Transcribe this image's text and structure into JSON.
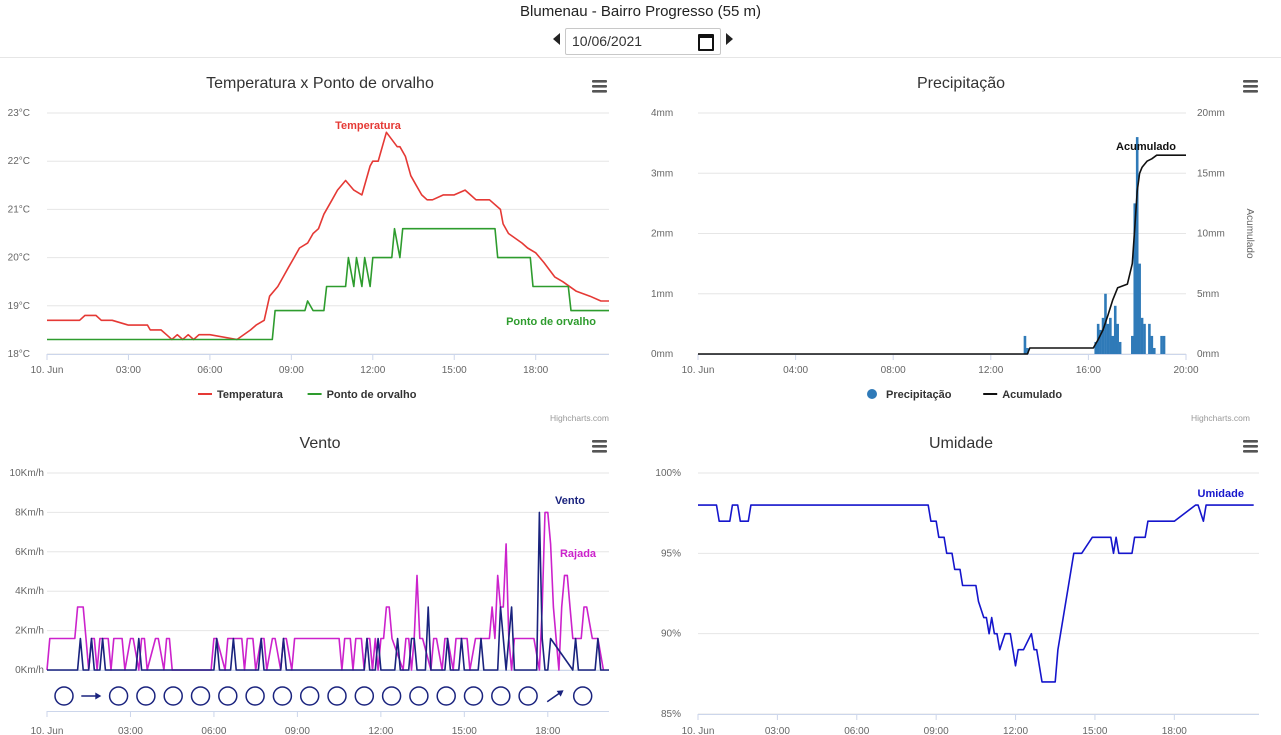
{
  "header": {
    "title": "Blumenau - Bairro Progresso (55 m)",
    "date": "10/06/2021",
    "prev_icon": "caret-left-icon",
    "next_icon": "caret-right-icon",
    "calendar_icon": "calendar-icon"
  },
  "menu_icon": "hamburger-menu-icon",
  "credit": "Highcharts.com",
  "chart_data": [
    {
      "id": "temperature",
      "type": "line",
      "title": "Temperatura x Ponto de orvalho",
      "x_ticks": [
        "10. Jun",
        "03:00",
        "06:00",
        "09:00",
        "12:00",
        "15:00",
        "18:00"
      ],
      "xlim": [
        0,
        20.7
      ],
      "ylim": [
        18,
        23
      ],
      "y_ticks": [
        "18°C",
        "19°C",
        "20°C",
        "21°C",
        "22°C",
        "23°C"
      ],
      "legend": [
        "Temperatura",
        "Ponto de orvalho"
      ],
      "series": [
        {
          "name": "Temperatura",
          "color": "#e53935",
          "label": "Temperatura",
          "x": [
            0,
            1.2,
            1.4,
            1.8,
            2.0,
            2.4,
            3.0,
            3.7,
            3.8,
            4.2,
            4.4,
            4.6,
            4.8,
            5.0,
            5.2,
            5.4,
            5.6,
            6.0,
            7.0,
            7.5,
            7.7,
            8.0,
            8.2,
            8.5,
            8.7,
            8.9,
            9.1,
            9.3,
            9.6,
            9.8,
            10.0,
            10.2,
            10.5,
            10.7,
            11.0,
            11.3,
            11.6,
            11.9,
            12.0,
            12.2,
            12.3,
            12.5,
            12.9,
            13.0,
            13.2,
            13.4,
            13.6,
            13.8,
            14.0,
            14.2,
            14.6,
            14.8,
            15.0,
            15.4,
            15.6,
            15.8,
            16.3,
            16.7,
            16.8,
            17.0,
            17.5,
            17.7,
            18.0,
            18.3,
            18.7,
            19.0,
            19.5,
            20.0,
            20.4,
            20.7
          ],
          "y": [
            18.7,
            18.7,
            18.8,
            18.8,
            18.7,
            18.7,
            18.6,
            18.6,
            18.5,
            18.5,
            18.4,
            18.3,
            18.4,
            18.3,
            18.4,
            18.3,
            18.4,
            18.4,
            18.3,
            18.5,
            18.6,
            18.7,
            19.2,
            19.4,
            19.6,
            19.8,
            20.0,
            20.2,
            20.3,
            20.5,
            20.6,
            20.9,
            21.2,
            21.4,
            21.6,
            21.4,
            21.3,
            21.9,
            22.0,
            22.0,
            22.2,
            22.6,
            22.3,
            22.3,
            22.1,
            21.7,
            21.5,
            21.3,
            21.2,
            21.2,
            21.3,
            21.3,
            21.3,
            21.4,
            21.3,
            21.2,
            21.2,
            21.0,
            20.7,
            20.5,
            20.3,
            20.2,
            20.1,
            19.9,
            19.6,
            19.5,
            19.3,
            19.2,
            19.1,
            19.1
          ]
        },
        {
          "name": "Ponto de orvalho",
          "color": "#2e9c2e",
          "label": "Ponto de orvalho",
          "x": [
            0,
            8.3,
            8.4,
            9.5,
            9.6,
            9.8,
            10.2,
            10.3,
            11.0,
            11.1,
            11.3,
            11.4,
            11.6,
            11.7,
            11.9,
            12.0,
            12.2,
            12.3,
            12.7,
            12.8,
            13.0,
            13.1,
            16.5,
            16.6,
            17.8,
            17.9,
            19.2,
            19.3,
            20.7
          ],
          "y": [
            18.3,
            18.3,
            18.9,
            18.9,
            19.1,
            18.9,
            18.9,
            19.4,
            19.4,
            20.0,
            19.4,
            20.0,
            19.4,
            20.0,
            19.4,
            20.0,
            20.0,
            20.0,
            20.0,
            20.6,
            20.0,
            20.6,
            20.6,
            20.0,
            20.0,
            19.4,
            19.4,
            18.9,
            18.9
          ]
        }
      ]
    },
    {
      "id": "precipitation",
      "type": "bar",
      "title": "Precipitação",
      "x_ticks": [
        "10. Jun",
        "04:00",
        "08:00",
        "12:00",
        "16:00",
        "20:00"
      ],
      "xlim": [
        0,
        20
      ],
      "ylim": [
        0,
        4
      ],
      "y_ticks": [
        "0mm",
        "1mm",
        "2mm",
        "3mm",
        "4mm"
      ],
      "y2lim": [
        0,
        20
      ],
      "y2_ticks": [
        "0mm",
        "5mm",
        "10mm",
        "15mm",
        "20mm"
      ],
      "y2label": "Acumulado",
      "legend": [
        "Precipitação",
        "Acumulado"
      ],
      "series": [
        {
          "name": "Precipitação",
          "color": "#2f7ab8",
          "axis": "left",
          "x": [
            13.4,
            13.5,
            16.3,
            16.4,
            16.5,
            16.6,
            16.7,
            16.8,
            16.9,
            17.0,
            17.1,
            17.2,
            17.3,
            17.8,
            17.9,
            18.0,
            18.1,
            18.2,
            18.3,
            18.5,
            18.6,
            18.7,
            19.0,
            19.1
          ],
          "y": [
            0.3,
            0.1,
            0.2,
            0.5,
            0.4,
            0.6,
            1.0,
            0.5,
            0.6,
            0.3,
            0.8,
            0.5,
            0.2,
            0.3,
            2.5,
            3.6,
            1.5,
            0.6,
            0.5,
            0.5,
            0.3,
            0.1,
            0.3,
            0.3
          ]
        },
        {
          "name": "Acumulado",
          "color": "#111111",
          "axis": "right",
          "label": "Acumulado",
          "x": [
            0,
            13.5,
            13.6,
            16.2,
            16.4,
            16.6,
            16.8,
            17.0,
            17.2,
            17.6,
            17.8,
            17.9,
            18.0,
            18.1,
            18.2,
            18.4,
            18.6,
            18.8,
            19.1,
            19.3,
            20.0
          ],
          "y": [
            0,
            0,
            0.5,
            0.5,
            1.2,
            2.0,
            3.2,
            4.5,
            5.5,
            5.8,
            7.5,
            10.5,
            13.5,
            15.0,
            15.5,
            16.0,
            16.2,
            16.5,
            16.5,
            16.5,
            16.5
          ]
        }
      ]
    },
    {
      "id": "wind",
      "type": "line",
      "title": "Vento",
      "x_ticks": [
        "10. Jun",
        "03:00",
        "06:00",
        "09:00",
        "12:00",
        "15:00",
        "18:00"
      ],
      "xlim": [
        0,
        20.2
      ],
      "ylim": [
        0,
        10
      ],
      "y_ticks": [
        "0Km/h",
        "2Km/h",
        "4Km/h",
        "6Km/h",
        "8Km/h",
        "10Km/h"
      ],
      "series": [
        {
          "name": "Rajada",
          "color": "#cc22cc",
          "label": "Rajada",
          "x": [
            0,
            0.1,
            0.2,
            1.0,
            1.1,
            1.3,
            1.4,
            1.5,
            1.6,
            1.7,
            1.8,
            1.9,
            2.2,
            2.3,
            2.4,
            2.7,
            2.8,
            3.0,
            3.1,
            3.3,
            3.4,
            3.5,
            3.6,
            3.9,
            4.0,
            4.2,
            4.3,
            4.4,
            4.5,
            5.9,
            6.0,
            6.1,
            6.4,
            6.5,
            7.0,
            7.1,
            7.2,
            7.4,
            7.5,
            7.7,
            7.8,
            7.9,
            8.1,
            8.2,
            8.4,
            8.5,
            8.6,
            8.8,
            8.9,
            9.4,
            9.5,
            9.8,
            9.9,
            10.2,
            10.3,
            10.5,
            10.6,
            10.7,
            10.9,
            11.0,
            11.1,
            11.3,
            11.4,
            11.5,
            11.6,
            11.7,
            11.8,
            11.9,
            12.0,
            12.1,
            12.2,
            12.3,
            12.4,
            12.8,
            12.9,
            13.0,
            13.1,
            13.2,
            13.3,
            13.4,
            13.5,
            13.8,
            13.9,
            14.0,
            14.2,
            14.3,
            14.4,
            14.6,
            14.7,
            14.8,
            15.0,
            15.1,
            15.2,
            15.4,
            15.5,
            15.6,
            15.9,
            16.0,
            16.1,
            16.2,
            16.3,
            16.4,
            16.5,
            16.6,
            16.7,
            16.8,
            17.0,
            17.1,
            17.2,
            17.4,
            17.5,
            17.7,
            17.8,
            17.9,
            18.0,
            18.1,
            18.2,
            18.3,
            18.4,
            18.5,
            18.6,
            18.7,
            18.8,
            18.9,
            19.0,
            19.2,
            19.3,
            19.4,
            19.6,
            19.7,
            19.8,
            20.0
          ],
          "y": [
            0,
            1.6,
            1.6,
            1.6,
            3.2,
            3.2,
            1.6,
            0,
            1.6,
            1.6,
            0,
            1.6,
            1.6,
            0,
            1.6,
            1.6,
            0,
            1.6,
            1.6,
            0,
            1.6,
            1.6,
            0,
            1.6,
            1.6,
            0,
            1.6,
            1.6,
            0,
            0,
            1.6,
            1.6,
            0,
            1.6,
            1.6,
            0,
            1.6,
            1.6,
            0,
            1.6,
            1.6,
            0,
            1.6,
            1.6,
            0,
            1.6,
            1.6,
            0,
            1.6,
            1.6,
            1.6,
            1.6,
            1.6,
            1.6,
            1.6,
            1.6,
            0,
            1.6,
            1.6,
            0,
            1.6,
            1.6,
            0,
            1.6,
            1.6,
            0,
            1.6,
            0,
            1.6,
            1.6,
            3.2,
            3.2,
            1.6,
            0,
            1.6,
            1.6,
            0,
            1.6,
            4.8,
            1.6,
            1.6,
            0,
            1.6,
            1.6,
            0,
            1.6,
            1.6,
            0,
            1.6,
            1.6,
            1.6,
            1.6,
            0,
            1.6,
            1.6,
            1.6,
            1.6,
            3.2,
            1.6,
            4.8,
            3.2,
            3.2,
            6.4,
            1.6,
            0,
            1.6,
            1.6,
            1.6,
            1.6,
            1.6,
            1.6,
            0,
            3.2,
            8.0,
            8.0,
            6.4,
            3.2,
            1.6,
            0,
            3.2,
            4.8,
            4.8,
            3.2,
            1.6,
            1.6,
            1.6,
            3.2,
            3.2,
            1.6,
            1.6,
            1.6,
            0
          ]
        },
        {
          "name": "Vento",
          "color": "#1a237e",
          "label": "Vento",
          "x": [
            0,
            1.1,
            1.2,
            1.3,
            1.5,
            1.6,
            1.7,
            1.9,
            2.0,
            2.1,
            3.2,
            3.3,
            3.4,
            6.0,
            6.1,
            6.2,
            6.6,
            6.7,
            6.8,
            7.6,
            7.7,
            7.8,
            8.4,
            8.5,
            8.6,
            11.4,
            11.5,
            11.6,
            11.8,
            11.9,
            12.0,
            12.5,
            12.6,
            12.7,
            13.0,
            13.1,
            13.2,
            13.3,
            13.6,
            13.7,
            13.8,
            14.3,
            14.4,
            14.5,
            14.8,
            14.9,
            15.0,
            15.5,
            15.6,
            15.7,
            16.2,
            16.3,
            16.4,
            16.5,
            16.6,
            16.7,
            16.8,
            17.6,
            17.7,
            17.8,
            17.9,
            18.0,
            18.1,
            18.9,
            19.0,
            19.1,
            19.7,
            19.8,
            19.9,
            20.2
          ],
          "y": [
            0,
            0,
            1.6,
            0,
            0,
            1.6,
            0,
            0,
            1.6,
            0,
            0,
            1.6,
            0,
            0,
            1.6,
            0,
            0,
            1.6,
            0,
            0,
            1.6,
            0,
            0,
            1.6,
            0,
            0,
            1.6,
            0,
            0,
            1.6,
            0,
            0,
            1.6,
            0,
            0,
            1.6,
            1.6,
            0,
            0,
            3.2,
            0,
            0,
            1.6,
            0,
            0,
            1.6,
            0,
            0,
            1.6,
            0,
            0,
            3.2,
            1.6,
            0,
            1.6,
            3.2,
            0,
            0,
            8.0,
            1.6,
            0,
            0,
            1.6,
            0,
            1.6,
            0,
            0,
            1.6,
            0,
            0
          ]
        }
      ],
      "direction_icons": [
        "calm-circle-icon",
        "arrow-east-icon",
        "calm-circle-icon",
        "calm-circle-icon",
        "calm-circle-icon",
        "calm-circle-icon",
        "calm-circle-icon",
        "calm-circle-icon",
        "calm-circle-icon",
        "calm-circle-icon",
        "calm-circle-icon",
        "calm-circle-icon",
        "calm-circle-icon",
        "calm-circle-icon",
        "calm-circle-icon",
        "calm-circle-icon",
        "calm-circle-icon",
        "calm-circle-icon",
        "arrow-northeast-icon",
        "calm-circle-icon"
      ],
      "direction_x": [
        0,
        1,
        2,
        3,
        4,
        5,
        6,
        7,
        8,
        9,
        10,
        11,
        12,
        13,
        14,
        15,
        16,
        17,
        18,
        19
      ]
    },
    {
      "id": "humidity",
      "type": "line",
      "title": "Umidade",
      "x_ticks": [
        "10. Jun",
        "03:00",
        "06:00",
        "09:00",
        "12:00",
        "15:00",
        "18:00"
      ],
      "xlim": [
        0,
        21.2
      ],
      "ylim": [
        85,
        100
      ],
      "y_ticks": [
        "85%",
        "90%",
        "95%",
        "100%"
      ],
      "series": [
        {
          "name": "Umidade",
          "color": "#1515cc",
          "label": "Umidade",
          "x": [
            0,
            0.7,
            0.8,
            1.2,
            1.3,
            1.5,
            1.6,
            1.9,
            2.0,
            8.7,
            8.8,
            9.0,
            9.1,
            9.3,
            9.4,
            9.6,
            9.7,
            9.9,
            10.0,
            10.5,
            10.6,
            10.8,
            10.9,
            11.0,
            11.1,
            11.2,
            11.3,
            11.4,
            11.6,
            11.7,
            11.8,
            12.0,
            12.1,
            12.3,
            12.6,
            12.7,
            12.8,
            13.0,
            13.5,
            13.6,
            13.8,
            14.0,
            14.2,
            14.4,
            14.5,
            14.9,
            15.0,
            15.6,
            15.7,
            15.8,
            15.9,
            16.4,
            16.5,
            16.9,
            17.0,
            17.9,
            18.0,
            18.8,
            18.9,
            19.1,
            19.2,
            21.0
          ],
          "y": [
            98,
            98,
            97,
            97,
            98,
            98,
            97,
            97,
            98,
            98,
            97,
            97,
            96,
            96,
            95,
            95,
            94,
            94,
            93,
            93,
            92,
            91,
            91,
            90,
            91,
            90,
            90,
            89,
            90,
            90,
            90,
            88,
            89,
            89,
            90,
            89,
            89,
            87,
            87,
            89,
            91,
            93,
            95,
            95,
            95,
            96,
            96,
            96,
            95,
            96,
            95,
            95,
            96,
            96,
            97,
            97,
            97,
            98,
            98,
            97,
            98,
            98
          ]
        }
      ]
    }
  ]
}
